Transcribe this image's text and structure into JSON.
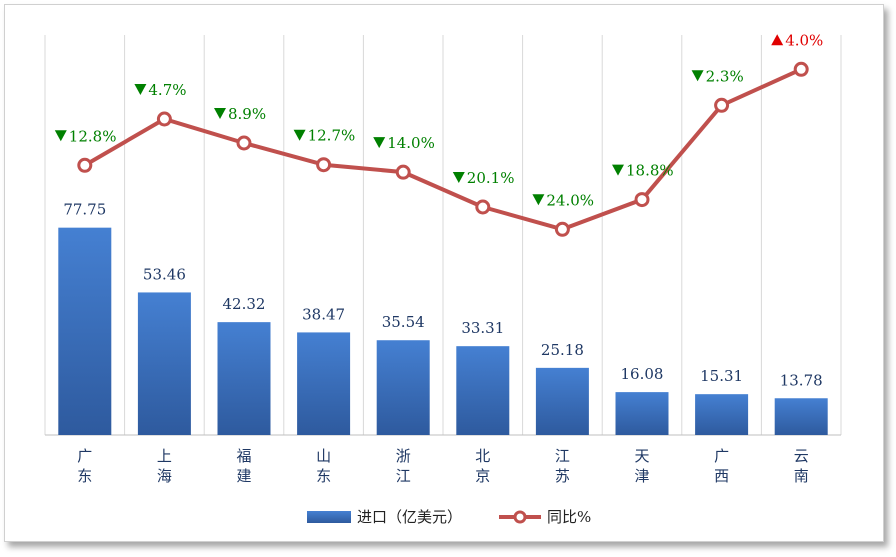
{
  "chart_data": {
    "type": "bar",
    "categories": [
      "广东",
      "上海",
      "福建",
      "山东",
      "浙江",
      "北京",
      "江苏",
      "天津",
      "广西",
      "云南"
    ],
    "series": [
      {
        "name": "进口（亿美元）",
        "type": "bar",
        "values": [
          77.75,
          53.46,
          42.32,
          38.47,
          35.54,
          33.31,
          25.18,
          16.08,
          15.31,
          13.78
        ],
        "labels": [
          "77.75",
          "53.46",
          "42.32",
          "38.47",
          "35.54",
          "33.31",
          "25.18",
          "16.08",
          "15.31",
          "13.78"
        ]
      },
      {
        "name": "同比%",
        "type": "line",
        "values": [
          -12.8,
          -4.7,
          -8.9,
          -12.7,
          -14.0,
          -20.1,
          -24.0,
          -18.8,
          -2.3,
          4.0
        ],
        "labels": [
          "12.8%",
          "4.7%",
          "8.9%",
          "12.7%",
          "14.0%",
          "20.1%",
          "24.0%",
          "18.8%",
          "2.3%",
          "4.0%"
        ]
      }
    ],
    "bar_ylim": [
      0,
      150
    ],
    "line_ylim": [
      -60,
      10
    ],
    "grid": "vertical",
    "legend": "bottom",
    "colors": {
      "bar": "#3a70c4",
      "line": "#c0504d",
      "down": "#008000",
      "up": "#e00000"
    }
  }
}
